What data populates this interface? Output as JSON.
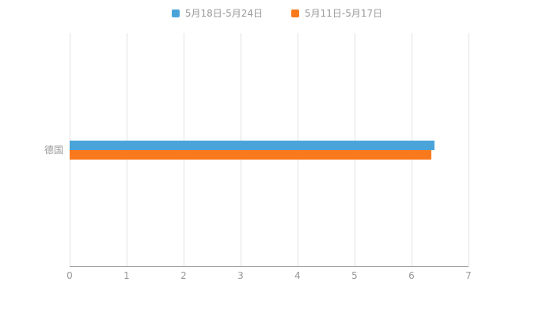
{
  "chart_data": {
    "type": "bar",
    "orientation": "horizontal",
    "title": "",
    "xlabel": "",
    "ylabel": "",
    "categories": [
      "德国"
    ],
    "series": [
      {
        "name": "5月18日-5月24日",
        "color": "#4aa4da",
        "values": [
          6.4
        ]
      },
      {
        "name": "5月11日-5月17日",
        "color": "#f9791d",
        "values": [
          6.35
        ]
      }
    ],
    "xlim": [
      0,
      7
    ],
    "xticks": [
      0,
      1,
      2,
      3,
      4,
      5,
      6,
      7
    ],
    "grid": true,
    "legend_position": "top"
  },
  "colors": {
    "background": "#ffffff",
    "gridline": "#e2e2e2",
    "axis_line": "#9e9e9e",
    "tick_text": "#999999",
    "legend_text": "#999999"
  }
}
